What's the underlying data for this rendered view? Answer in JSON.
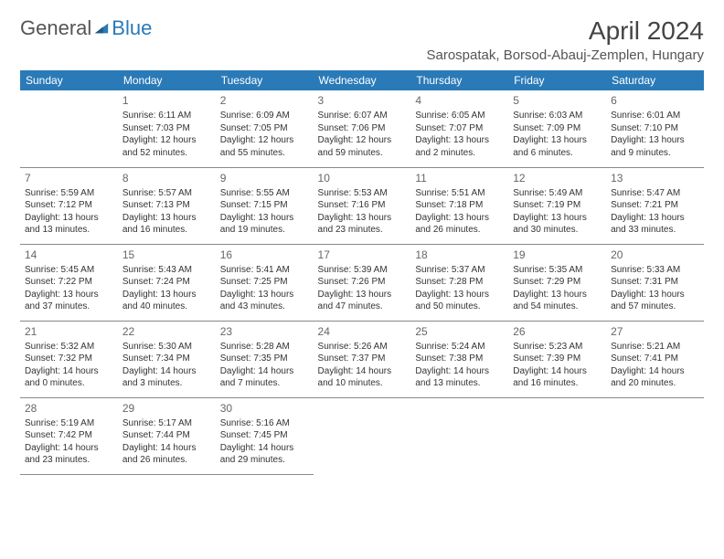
{
  "logo": {
    "general": "General",
    "blue": "Blue"
  },
  "title": "April 2024",
  "location": "Sarospatak, Borsod-Abauj-Zemplen, Hungary",
  "colors": {
    "header_bg": "#2a7ab8",
    "header_fg": "#ffffff",
    "border": "#888888",
    "text": "#333333",
    "muted": "#666666",
    "bg": "#ffffff"
  },
  "day_names": [
    "Sunday",
    "Monday",
    "Tuesday",
    "Wednesday",
    "Thursday",
    "Friday",
    "Saturday"
  ],
  "weeks": [
    [
      {
        "n": "",
        "sr": "",
        "ss": "",
        "dl": ""
      },
      {
        "n": "1",
        "sr": "6:11 AM",
        "ss": "7:03 PM",
        "dl": "12 hours and 52 minutes."
      },
      {
        "n": "2",
        "sr": "6:09 AM",
        "ss": "7:05 PM",
        "dl": "12 hours and 55 minutes."
      },
      {
        "n": "3",
        "sr": "6:07 AM",
        "ss": "7:06 PM",
        "dl": "12 hours and 59 minutes."
      },
      {
        "n": "4",
        "sr": "6:05 AM",
        "ss": "7:07 PM",
        "dl": "13 hours and 2 minutes."
      },
      {
        "n": "5",
        "sr": "6:03 AM",
        "ss": "7:09 PM",
        "dl": "13 hours and 6 minutes."
      },
      {
        "n": "6",
        "sr": "6:01 AM",
        "ss": "7:10 PM",
        "dl": "13 hours and 9 minutes."
      }
    ],
    [
      {
        "n": "7",
        "sr": "5:59 AM",
        "ss": "7:12 PM",
        "dl": "13 hours and 13 minutes."
      },
      {
        "n": "8",
        "sr": "5:57 AM",
        "ss": "7:13 PM",
        "dl": "13 hours and 16 minutes."
      },
      {
        "n": "9",
        "sr": "5:55 AM",
        "ss": "7:15 PM",
        "dl": "13 hours and 19 minutes."
      },
      {
        "n": "10",
        "sr": "5:53 AM",
        "ss": "7:16 PM",
        "dl": "13 hours and 23 minutes."
      },
      {
        "n": "11",
        "sr": "5:51 AM",
        "ss": "7:18 PM",
        "dl": "13 hours and 26 minutes."
      },
      {
        "n": "12",
        "sr": "5:49 AM",
        "ss": "7:19 PM",
        "dl": "13 hours and 30 minutes."
      },
      {
        "n": "13",
        "sr": "5:47 AM",
        "ss": "7:21 PM",
        "dl": "13 hours and 33 minutes."
      }
    ],
    [
      {
        "n": "14",
        "sr": "5:45 AM",
        "ss": "7:22 PM",
        "dl": "13 hours and 37 minutes."
      },
      {
        "n": "15",
        "sr": "5:43 AM",
        "ss": "7:24 PM",
        "dl": "13 hours and 40 minutes."
      },
      {
        "n": "16",
        "sr": "5:41 AM",
        "ss": "7:25 PM",
        "dl": "13 hours and 43 minutes."
      },
      {
        "n": "17",
        "sr": "5:39 AM",
        "ss": "7:26 PM",
        "dl": "13 hours and 47 minutes."
      },
      {
        "n": "18",
        "sr": "5:37 AM",
        "ss": "7:28 PM",
        "dl": "13 hours and 50 minutes."
      },
      {
        "n": "19",
        "sr": "5:35 AM",
        "ss": "7:29 PM",
        "dl": "13 hours and 54 minutes."
      },
      {
        "n": "20",
        "sr": "5:33 AM",
        "ss": "7:31 PM",
        "dl": "13 hours and 57 minutes."
      }
    ],
    [
      {
        "n": "21",
        "sr": "5:32 AM",
        "ss": "7:32 PM",
        "dl": "14 hours and 0 minutes."
      },
      {
        "n": "22",
        "sr": "5:30 AM",
        "ss": "7:34 PM",
        "dl": "14 hours and 3 minutes."
      },
      {
        "n": "23",
        "sr": "5:28 AM",
        "ss": "7:35 PM",
        "dl": "14 hours and 7 minutes."
      },
      {
        "n": "24",
        "sr": "5:26 AM",
        "ss": "7:37 PM",
        "dl": "14 hours and 10 minutes."
      },
      {
        "n": "25",
        "sr": "5:24 AM",
        "ss": "7:38 PM",
        "dl": "14 hours and 13 minutes."
      },
      {
        "n": "26",
        "sr": "5:23 AM",
        "ss": "7:39 PM",
        "dl": "14 hours and 16 minutes."
      },
      {
        "n": "27",
        "sr": "5:21 AM",
        "ss": "7:41 PM",
        "dl": "14 hours and 20 minutes."
      }
    ],
    [
      {
        "n": "28",
        "sr": "5:19 AM",
        "ss": "7:42 PM",
        "dl": "14 hours and 23 minutes."
      },
      {
        "n": "29",
        "sr": "5:17 AM",
        "ss": "7:44 PM",
        "dl": "14 hours and 26 minutes."
      },
      {
        "n": "30",
        "sr": "5:16 AM",
        "ss": "7:45 PM",
        "dl": "14 hours and 29 minutes."
      },
      {
        "n": "",
        "sr": "",
        "ss": "",
        "dl": ""
      },
      {
        "n": "",
        "sr": "",
        "ss": "",
        "dl": ""
      },
      {
        "n": "",
        "sr": "",
        "ss": "",
        "dl": ""
      },
      {
        "n": "",
        "sr": "",
        "ss": "",
        "dl": ""
      }
    ]
  ],
  "labels": {
    "sunrise": "Sunrise: ",
    "sunset": "Sunset: ",
    "daylight": "Daylight: "
  }
}
